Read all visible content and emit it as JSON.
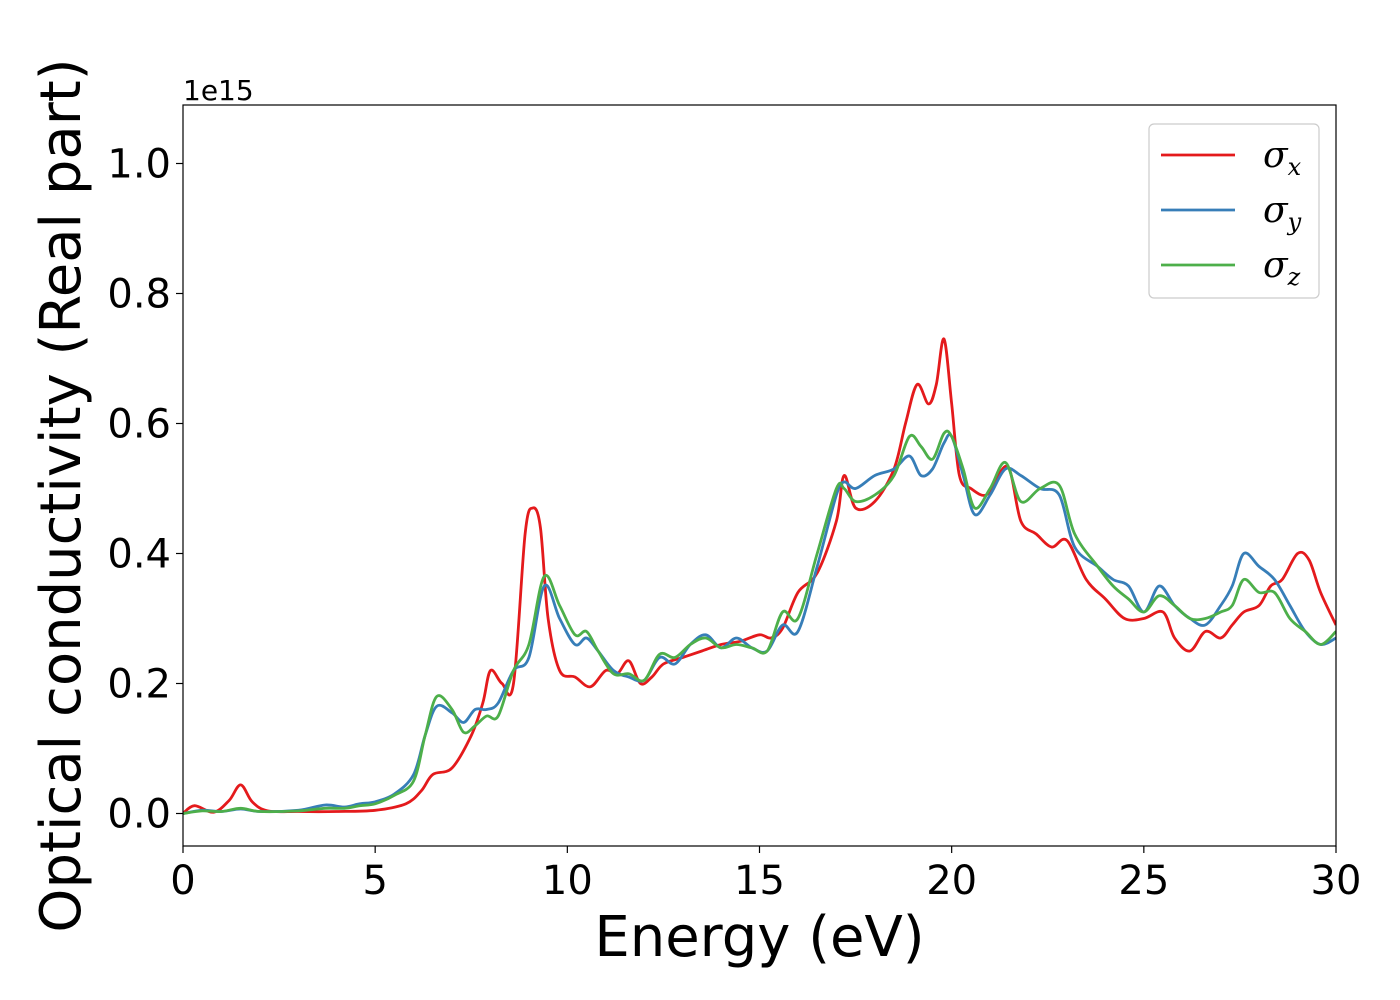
{
  "chart_data": {
    "type": "line",
    "xlabel": "Energy (eV)",
    "ylabel": "Optical conductivity (Real part)",
    "y_offset_label": "1e15",
    "xlim": [
      0,
      30
    ],
    "ylim": [
      -0.05,
      1.09
    ],
    "x_ticks": [
      0,
      5,
      10,
      15,
      20,
      25,
      30
    ],
    "x_tick_labels": [
      "0",
      "5",
      "10",
      "15",
      "20",
      "25",
      "30"
    ],
    "y_ticks": [
      0.0,
      0.2,
      0.4,
      0.6,
      0.8,
      1.0
    ],
    "y_tick_labels": [
      "0.0",
      "0.2",
      "0.4",
      "0.6",
      "0.8",
      "1.0"
    ],
    "grid": false,
    "legend_position": "top-right",
    "series": [
      {
        "name": "σx",
        "symbol": "σ",
        "subscript": "x",
        "color": "#e41a1c",
        "x": [
          0,
          0.3,
          0.8,
          1.2,
          1.5,
          1.8,
          2.2,
          3,
          4,
          5,
          5.8,
          6.2,
          6.5,
          7,
          7.5,
          7.8,
          8.0,
          8.3,
          8.6,
          8.9,
          9.1,
          9.3,
          9.5,
          9.8,
          10.2,
          10.6,
          11.0,
          11.3,
          11.6,
          11.9,
          12.2,
          12.5,
          13.0,
          13.5,
          14.0,
          14.5,
          15.0,
          15.3,
          15.6,
          16.0,
          16.5,
          17.0,
          17.2,
          17.5,
          18.0,
          18.5,
          18.8,
          19.1,
          19.4,
          19.6,
          19.8,
          20.0,
          20.2,
          20.5,
          20.9,
          21.2,
          21.5,
          21.8,
          22.2,
          22.6,
          23.0,
          23.5,
          24.0,
          24.5,
          25.0,
          25.5,
          25.8,
          26.2,
          26.6,
          27.0,
          27.3,
          27.6,
          28.0,
          28.3,
          28.6,
          29.0,
          29.3,
          29.6,
          30.0
        ],
        "values": [
          0.0,
          0.012,
          0.002,
          0.02,
          0.044,
          0.018,
          0.004,
          0.003,
          0.003,
          0.005,
          0.015,
          0.035,
          0.06,
          0.07,
          0.12,
          0.17,
          0.22,
          0.2,
          0.2,
          0.43,
          0.47,
          0.44,
          0.3,
          0.22,
          0.21,
          0.195,
          0.22,
          0.215,
          0.235,
          0.2,
          0.21,
          0.23,
          0.24,
          0.25,
          0.26,
          0.265,
          0.275,
          0.27,
          0.285,
          0.34,
          0.37,
          0.45,
          0.52,
          0.47,
          0.48,
          0.53,
          0.6,
          0.66,
          0.63,
          0.66,
          0.73,
          0.63,
          0.52,
          0.5,
          0.49,
          0.52,
          0.53,
          0.45,
          0.43,
          0.41,
          0.42,
          0.36,
          0.33,
          0.3,
          0.3,
          0.31,
          0.27,
          0.25,
          0.28,
          0.27,
          0.29,
          0.31,
          0.32,
          0.35,
          0.36,
          0.4,
          0.39,
          0.34,
          0.29
        ]
      },
      {
        "name": "σy",
        "symbol": "σ",
        "subscript": "y",
        "color": "#377eb8",
        "x": [
          0,
          0.5,
          1.0,
          1.5,
          2.0,
          3.0,
          3.7,
          4.2,
          4.6,
          5.0,
          5.5,
          6.0,
          6.3,
          6.6,
          7.0,
          7.3,
          7.6,
          7.9,
          8.2,
          8.6,
          9.0,
          9.4,
          9.8,
          10.2,
          10.5,
          10.8,
          11.2,
          11.6,
          12.0,
          12.4,
          12.8,
          13.2,
          13.6,
          14.0,
          14.4,
          14.8,
          15.2,
          15.6,
          16.0,
          16.5,
          17.0,
          17.2,
          17.5,
          18.0,
          18.5,
          18.9,
          19.2,
          19.5,
          19.8,
          20.0,
          20.3,
          20.6,
          21.0,
          21.4,
          21.8,
          22.3,
          22.8,
          23.2,
          23.8,
          24.2,
          24.6,
          25.0,
          25.4,
          25.8,
          26.2,
          26.6,
          27.0,
          27.3,
          27.6,
          28.0,
          28.4,
          28.8,
          29.2,
          29.6,
          30.0
        ],
        "values": [
          0.0,
          0.005,
          0.003,
          0.007,
          0.003,
          0.005,
          0.013,
          0.01,
          0.015,
          0.018,
          0.03,
          0.06,
          0.12,
          0.165,
          0.155,
          0.14,
          0.16,
          0.16,
          0.17,
          0.22,
          0.24,
          0.35,
          0.3,
          0.26,
          0.27,
          0.25,
          0.22,
          0.21,
          0.205,
          0.24,
          0.23,
          0.26,
          0.275,
          0.255,
          0.27,
          0.255,
          0.25,
          0.29,
          0.28,
          0.38,
          0.49,
          0.51,
          0.5,
          0.52,
          0.53,
          0.55,
          0.52,
          0.53,
          0.57,
          0.58,
          0.52,
          0.46,
          0.49,
          0.53,
          0.52,
          0.5,
          0.49,
          0.41,
          0.38,
          0.36,
          0.35,
          0.31,
          0.35,
          0.32,
          0.3,
          0.29,
          0.32,
          0.35,
          0.4,
          0.38,
          0.36,
          0.32,
          0.28,
          0.26,
          0.27
        ]
      },
      {
        "name": "σz",
        "symbol": "σ",
        "subscript": "z",
        "color": "#4daf4a",
        "x": [
          0,
          0.5,
          1.0,
          1.5,
          2.0,
          3.0,
          3.7,
          4.2,
          4.6,
          5.0,
          5.5,
          6.0,
          6.3,
          6.6,
          7.0,
          7.3,
          7.6,
          7.9,
          8.2,
          8.6,
          9.0,
          9.4,
          9.8,
          10.2,
          10.5,
          10.8,
          11.2,
          11.6,
          12.0,
          12.4,
          12.8,
          13.2,
          13.6,
          14.0,
          14.4,
          14.8,
          15.2,
          15.6,
          16.0,
          16.5,
          17.0,
          17.2,
          17.5,
          18.0,
          18.5,
          18.9,
          19.2,
          19.5,
          19.8,
          20.0,
          20.3,
          20.6,
          21.0,
          21.4,
          21.8,
          22.3,
          22.8,
          23.2,
          23.8,
          24.2,
          24.6,
          25.0,
          25.4,
          25.8,
          26.2,
          26.6,
          27.0,
          27.3,
          27.6,
          28.0,
          28.4,
          28.8,
          29.2,
          29.6,
          30.0
        ],
        "values": [
          0.0,
          0.004,
          0.003,
          0.008,
          0.003,
          0.004,
          0.008,
          0.008,
          0.012,
          0.015,
          0.028,
          0.05,
          0.12,
          0.18,
          0.16,
          0.125,
          0.135,
          0.15,
          0.15,
          0.22,
          0.26,
          0.365,
          0.32,
          0.275,
          0.28,
          0.25,
          0.215,
          0.215,
          0.205,
          0.245,
          0.24,
          0.26,
          0.27,
          0.255,
          0.26,
          0.255,
          0.25,
          0.31,
          0.3,
          0.4,
          0.5,
          0.5,
          0.48,
          0.49,
          0.52,
          0.58,
          0.565,
          0.545,
          0.585,
          0.58,
          0.53,
          0.47,
          0.5,
          0.54,
          0.48,
          0.5,
          0.505,
          0.43,
          0.38,
          0.35,
          0.33,
          0.31,
          0.335,
          0.32,
          0.3,
          0.3,
          0.31,
          0.32,
          0.36,
          0.34,
          0.34,
          0.3,
          0.28,
          0.26,
          0.28
        ]
      }
    ]
  }
}
